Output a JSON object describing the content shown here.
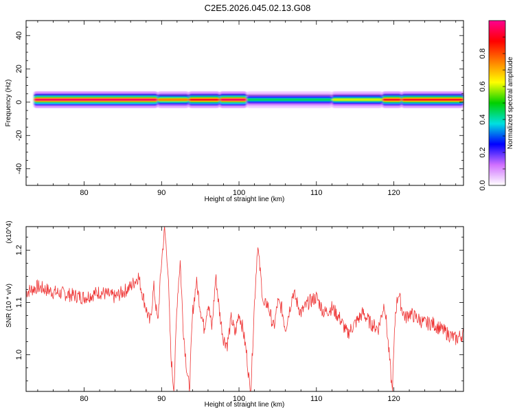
{
  "page": {
    "title": "C2E5.2026.045.02.13.G08"
  },
  "chart_data": [
    {
      "type": "heatmap",
      "xlabel": "Height of straight line (km)",
      "ylabel": "Frequency (Hz)",
      "xlim": [
        72.5,
        129
      ],
      "ylim": [
        -50,
        49
      ],
      "xticks": [
        80,
        90,
        100,
        110,
        120
      ],
      "yticks": [
        -40,
        -20,
        0,
        20,
        40
      ],
      "colorbar": {
        "label": "Normalized spectral amplitude",
        "range": [
          0,
          1
        ],
        "ticks": [
          "0.0",
          "0.2",
          "0.4",
          "0.6",
          "0.8"
        ],
        "colors": [
          "#ffffff",
          "#d070ff",
          "#0000ff",
          "#00e0e0",
          "#00d000",
          "#ffff00",
          "#ff8000",
          "#ff0000",
          "#ff0090"
        ]
      },
      "band": {
        "center_freq_hz": 1.5,
        "segments": [
          {
            "x": [
              73.5,
              89.5
            ],
            "amplitude": 0.95
          },
          {
            "x": [
              89.5,
              93.5
            ],
            "amplitude": 0.75
          },
          {
            "x": [
              93.5,
              97.5
            ],
            "amplitude": 0.9
          },
          {
            "x": [
              97.5,
              101
            ],
            "amplitude": 0.95
          },
          {
            "x": [
              101,
              112
            ],
            "amplitude": 0.45
          },
          {
            "x": [
              112,
              118.5
            ],
            "amplitude": 0.6
          },
          {
            "x": [
              118.5,
              121
            ],
            "amplitude": 0.9
          },
          {
            "x": [
              121,
              129
            ],
            "amplitude": 0.9
          }
        ]
      }
    },
    {
      "type": "line",
      "xlabel": "Height of straight line (km)",
      "ylabel": "SNR (10 * v/v)",
      "y_multiplier": "(x10^4)",
      "xlim": [
        72.5,
        129
      ],
      "ylim": [
        0.93,
        1.245
      ],
      "xticks": [
        80,
        90,
        100,
        110,
        120
      ],
      "yticks": [
        1.0,
        1.1,
        1.2
      ],
      "color": "#ee3333",
      "series": [
        {
          "x": [
            72.5,
            74,
            76,
            78,
            80,
            82,
            84,
            86,
            87,
            87.8,
            88.5,
            89,
            89.5,
            90,
            90.4,
            90.8,
            91.2,
            91.6,
            92,
            92.4,
            92.8,
            93.2,
            93.6,
            94,
            94.5,
            95,
            95.5,
            96,
            96.5,
            97,
            97.5,
            98,
            98.5,
            99,
            99.5,
            100,
            100.5,
            101,
            101.5,
            102,
            102.4,
            102.8,
            103.2,
            103.6,
            104,
            104.5,
            105,
            105.5,
            106,
            107,
            108,
            109,
            110,
            111,
            112,
            113,
            114,
            115,
            116,
            117,
            118,
            118.8,
            119.4,
            119.8,
            120.2,
            120.6,
            121,
            121.5,
            122,
            123,
            124,
            125,
            126,
            127,
            128,
            129
          ],
          "y": [
            1.12,
            1.13,
            1.12,
            1.115,
            1.11,
            1.12,
            1.11,
            1.13,
            1.15,
            1.1,
            1.06,
            1.13,
            1.06,
            1.18,
            1.24,
            1.17,
            1.0,
            0.93,
            1.1,
            1.18,
            1.05,
            0.98,
            0.93,
            1.08,
            1.14,
            1.09,
            1.05,
            1.1,
            1.05,
            1.15,
            1.08,
            1.03,
            1.02,
            1.07,
            1.04,
            1.08,
            1.05,
            1.0,
            0.92,
            1.1,
            1.21,
            1.15,
            1.09,
            1.1,
            1.08,
            1.05,
            1.1,
            1.09,
            1.05,
            1.12,
            1.08,
            1.1,
            1.11,
            1.08,
            1.09,
            1.07,
            1.04,
            1.06,
            1.08,
            1.06,
            1.05,
            1.1,
            1.0,
            0.93,
            1.08,
            1.12,
            1.09,
            1.07,
            1.08,
            1.07,
            1.06,
            1.06,
            1.05,
            1.04,
            1.03,
            1.04
          ]
        }
      ]
    }
  ]
}
